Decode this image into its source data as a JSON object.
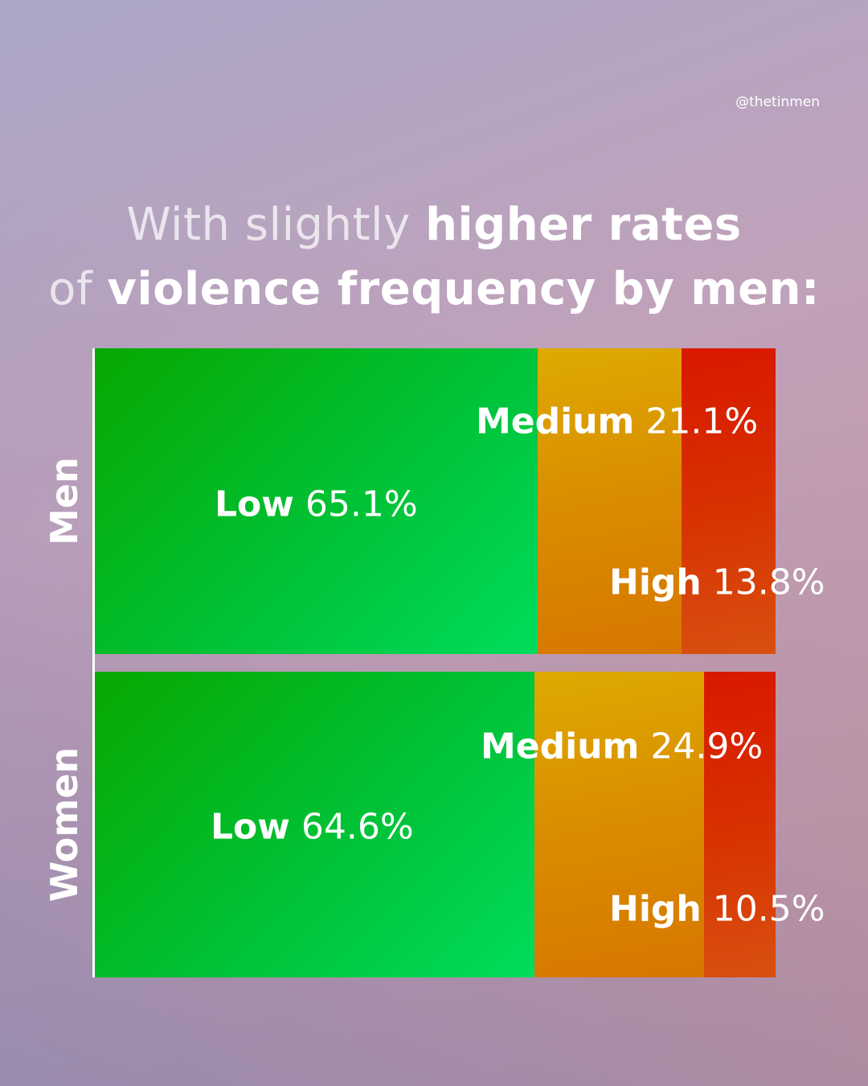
{
  "handle": "@thetinmen",
  "title": {
    "line1_light": "With slightly ",
    "line1_bold": "higher rates",
    "line2_light": "of ",
    "line2_bold": "violence frequency by men:"
  },
  "colors": {
    "low": "#00c43a",
    "medium": "#d98c00",
    "high": "#d82800"
  },
  "chart_data": {
    "type": "bar",
    "orientation": "horizontal-stacked-100",
    "categories": [
      "Men",
      "Women"
    ],
    "series": [
      {
        "name": "Low",
        "values": [
          65.1,
          64.6
        ],
        "labels": [
          "65.1%",
          "64.6%"
        ]
      },
      {
        "name": "Medium",
        "values": [
          21.1,
          24.9
        ],
        "labels": [
          "21.1%",
          "24.9%"
        ]
      },
      {
        "name": "High",
        "values": [
          13.8,
          10.5
        ],
        "labels": [
          "13.8%",
          "10.5%"
        ]
      }
    ],
    "unit": "%",
    "xlim": [
      0,
      100
    ],
    "grid": false,
    "legend": "none"
  }
}
